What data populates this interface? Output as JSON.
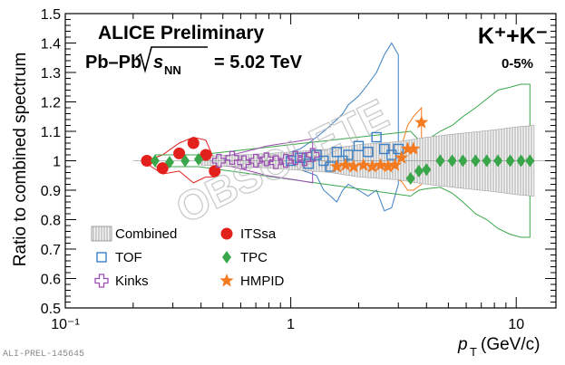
{
  "chart_data": {
    "type": "scatter",
    "title_line1": "ALICE Preliminary",
    "title_line2_prefix": "Pb–Pb",
    "title_line2_sqrt": "s",
    "title_line2_sub": "NN",
    "title_line2_suffix": "= 5.02 TeV",
    "particle": "K⁺+K⁻",
    "centrality": "0-5%",
    "watermark": "OBSOLETE",
    "xlabel": "p",
    "xlabel_sub": "T",
    "xlabel_units": "(GeV/c)",
    "ylabel": "Ratio to combined spectrum",
    "x_scale": "log",
    "xlim": [
      0.1,
      15
    ],
    "ylim": [
      0.5,
      1.5
    ],
    "x_ticks": [
      0.1,
      1,
      10
    ],
    "x_tick_labels": [
      "10⁻¹",
      "1",
      "10"
    ],
    "y_ticks": [
      0.5,
      0.6,
      0.7,
      0.8,
      0.9,
      1.0,
      1.1,
      1.2,
      1.3,
      1.4,
      1.5
    ],
    "y_tick_labels": [
      "0.5",
      "0.6",
      "0.7",
      "0.8",
      "0.9",
      "1",
      "1.1",
      "1.2",
      "1.3",
      "1.4",
      "1.5"
    ],
    "legend": [
      {
        "label": "Combined",
        "marker": "hatched-box",
        "color": "#9a9a9a"
      },
      {
        "label": "ITSsa",
        "marker": "circle",
        "color": "#e3211c"
      },
      {
        "label": "TOF",
        "marker": "open-square",
        "color": "#3b7fc4"
      },
      {
        "label": "TPC",
        "marker": "diamond",
        "color": "#3aa64a"
      },
      {
        "label": "Kinks",
        "marker": "open-cross",
        "color": "#9b4fb3"
      },
      {
        "label": "HMPID",
        "marker": "star",
        "color": "#f47b20"
      }
    ],
    "series": [
      {
        "name": "Combined",
        "x": [
          0.4,
          0.6,
          0.8,
          1.0,
          1.5,
          2.0,
          3.0,
          4.0,
          6.0,
          8.0,
          10.0,
          12.0
        ],
        "y": [
          1,
          1,
          1,
          1,
          1,
          1,
          1,
          1,
          1,
          1,
          1,
          1
        ],
        "band_low": [
          0.985,
          0.98,
          0.975,
          0.97,
          0.96,
          0.945,
          0.935,
          0.92,
          0.905,
          0.895,
          0.885,
          0.88
        ],
        "band_high": [
          1.015,
          1.02,
          1.025,
          1.03,
          1.04,
          1.055,
          1.065,
          1.08,
          1.095,
          1.105,
          1.115,
          1.12
        ]
      },
      {
        "name": "ITSsa",
        "x": [
          0.23,
          0.27,
          0.32,
          0.37,
          0.42,
          0.46
        ],
        "y": [
          1.0,
          0.975,
          1.025,
          1.06,
          1.02,
          0.965
        ],
        "band_low": [
          0.99,
          0.955,
          0.965,
          0.925,
          0.945,
          0.945
        ],
        "band_high": [
          1.0,
          1.02,
          1.06,
          1.08,
          1.07,
          1.0
        ]
      },
      {
        "name": "TOF",
        "x": [
          1.0,
          1.1,
          1.2,
          1.3,
          1.4,
          1.5,
          1.6,
          1.7,
          1.8,
          2.0,
          2.2,
          2.4,
          2.6,
          2.8,
          3.0
        ],
        "y": [
          1.0,
          1.01,
          0.99,
          1.02,
          1.0,
          0.98,
          1.03,
          1.0,
          1.02,
          1.05,
          1.03,
          1.08,
          1.04,
          1.02,
          1.04
        ],
        "band_low": [
          0.98,
          0.97,
          0.96,
          0.95,
          0.9,
          0.88,
          0.86,
          0.9,
          0.92,
          0.9,
          0.88,
          0.9,
          0.83,
          0.84,
          0.92
        ],
        "band_high": [
          1.03,
          1.04,
          1.06,
          1.08,
          1.1,
          1.12,
          1.14,
          1.16,
          1.19,
          1.22,
          1.26,
          1.3,
          1.36,
          1.4,
          1.36
        ]
      },
      {
        "name": "TPC",
        "x": [
          0.25,
          0.29,
          0.34,
          0.39,
          3.4,
          3.7,
          4.0,
          4.6,
          5.2,
          5.8,
          6.6,
          7.4,
          8.3,
          9.4,
          10.5,
          11.5
        ],
        "y": [
          1.0,
          0.995,
          1.0,
          1.005,
          0.94,
          0.965,
          0.97,
          1.0,
          1.0,
          1.0,
          1.0,
          1.0,
          1.0,
          1.0,
          1.0,
          1.0
        ],
        "band_low": [
          0.98,
          0.98,
          0.98,
          0.98,
          0.88,
          0.9,
          0.905,
          0.91,
          0.89,
          0.86,
          0.82,
          0.8,
          0.77,
          0.75,
          0.74,
          0.74
        ],
        "band_high": [
          1.02,
          1.02,
          1.02,
          1.02,
          1.1,
          1.07,
          1.07,
          1.1,
          1.12,
          1.15,
          1.18,
          1.21,
          1.24,
          1.25,
          1.26,
          1.26
        ]
      },
      {
        "name": "Kinks",
        "x": [
          0.48,
          0.55,
          0.62,
          0.7,
          0.78,
          0.86,
          0.95,
          1.05,
          1.15,
          1.25
        ],
        "y": [
          1.0,
          1.01,
          0.995,
          1.0,
          1.005,
          0.995,
          1.0,
          1.01,
          1.005,
          1.02
        ],
        "band_low": [
          0.985,
          0.98,
          0.97,
          0.96,
          0.95,
          0.945,
          0.94,
          0.935,
          0.93,
          0.925
        ],
        "band_high": [
          1.015,
          1.02,
          1.03,
          1.04,
          1.05,
          1.055,
          1.06,
          1.065,
          1.07,
          1.075
        ]
      },
      {
        "name": "HMPID",
        "x": [
          1.6,
          1.75,
          1.9,
          2.1,
          2.3,
          2.5,
          2.7,
          2.9,
          3.1,
          3.3,
          3.5,
          3.8
        ],
        "y": [
          0.98,
          0.985,
          0.98,
          0.985,
          0.98,
          0.985,
          0.98,
          0.985,
          1.01,
          1.04,
          1.04,
          1.13
        ],
        "band_low": [
          0.96,
          0.965,
          0.96,
          0.96,
          0.955,
          0.95,
          0.94,
          0.94,
          0.93,
          0.9,
          0.9,
          0.92
        ],
        "band_high": [
          1.02,
          1.01,
          1.005,
          1.005,
          1.005,
          1.01,
          1.015,
          1.02,
          1.05,
          1.12,
          1.15,
          1.18
        ]
      }
    ]
  },
  "footer": {
    "id": "ALI-PREL-145645"
  }
}
